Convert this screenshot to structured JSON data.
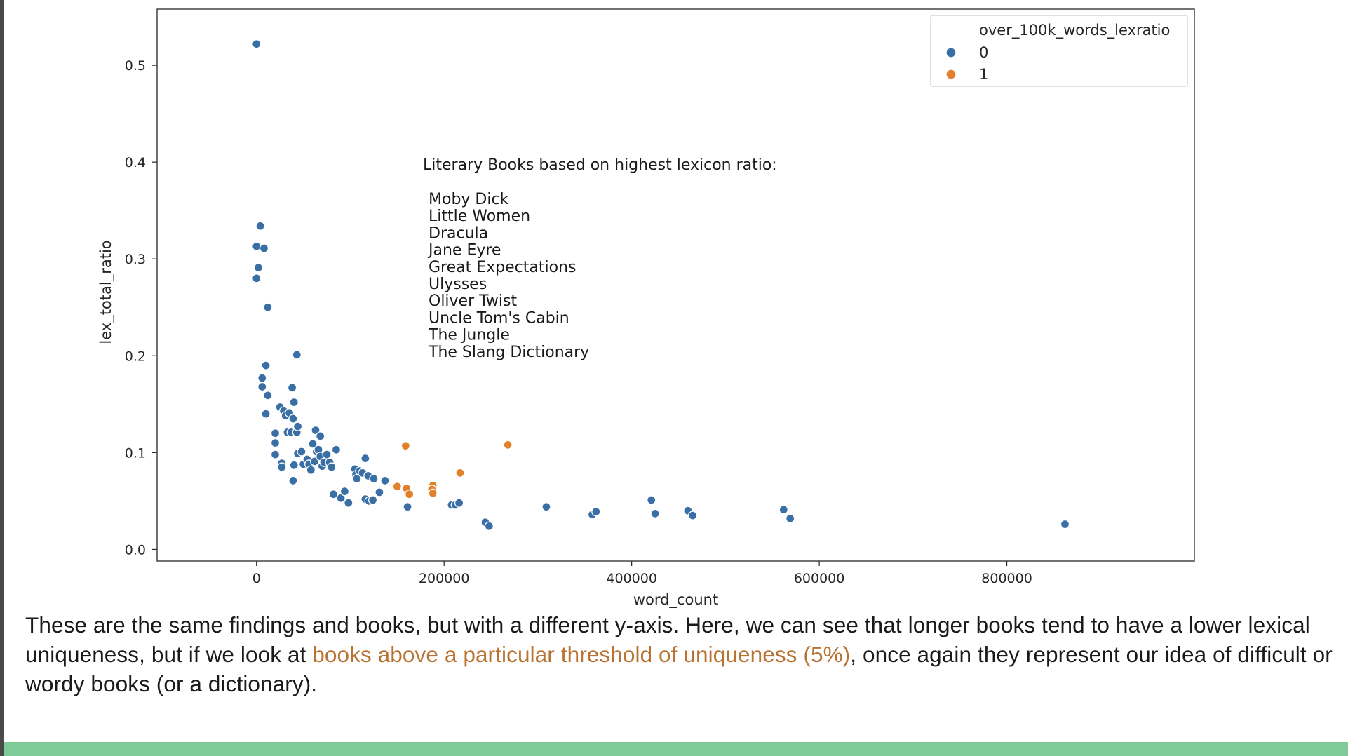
{
  "chart_data": {
    "type": "scatter",
    "xlabel": "word_count",
    "ylabel": "lex_total_ratio",
    "xlim": [
      -106000,
      1000000
    ],
    "ylim": [
      -0.012,
      0.558
    ],
    "x_ticks": [
      0,
      200000,
      400000,
      600000,
      800000
    ],
    "x_tick_labels": [
      "0",
      "200000",
      "400000",
      "600000",
      "800000"
    ],
    "y_ticks": [
      0.0,
      0.1,
      0.2,
      0.3,
      0.4,
      0.5
    ],
    "y_tick_labels": [
      "0.0",
      "0.1",
      "0.2",
      "0.3",
      "0.4",
      "0.5"
    ],
    "legend": {
      "title": "over_100k_words_lexratio",
      "placement": "top-right",
      "entries": [
        {
          "label": "0",
          "color": "#3a6fa6"
        },
        {
          "label": "1",
          "color": "#e1812c"
        }
      ]
    },
    "annotation": {
      "heading": "Literary Books based on highest lexicon ratio:",
      "books": [
        "Moby Dick",
        "Little Women",
        "Dracula",
        "Jane Eyre",
        "Great Expectations",
        "Ulysses",
        "Oliver Twist",
        "Uncle Tom's Cabin",
        "The Jungle",
        "The Slang Dictionary"
      ]
    },
    "series": [
      {
        "label": "0",
        "color": "#3a6fa6",
        "points": [
          [
            0,
            0.522
          ],
          [
            4000,
            0.334
          ],
          [
            0,
            0.313
          ],
          [
            8000,
            0.311
          ],
          [
            2000,
            0.291
          ],
          [
            0,
            0.28
          ],
          [
            12000,
            0.25
          ],
          [
            43000,
            0.201
          ],
          [
            10000,
            0.19
          ],
          [
            6000,
            0.177
          ],
          [
            6000,
            0.168
          ],
          [
            12000,
            0.159
          ],
          [
            10000,
            0.14
          ],
          [
            38000,
            0.167
          ],
          [
            40000,
            0.152
          ],
          [
            25000,
            0.147
          ],
          [
            29000,
            0.143
          ],
          [
            31000,
            0.138
          ],
          [
            35000,
            0.141
          ],
          [
            39000,
            0.135
          ],
          [
            33000,
            0.121
          ],
          [
            37000,
            0.121
          ],
          [
            43000,
            0.121
          ],
          [
            44000,
            0.127
          ],
          [
            63000,
            0.123
          ],
          [
            68000,
            0.117
          ],
          [
            20000,
            0.12
          ],
          [
            20000,
            0.11
          ],
          [
            20000,
            0.098
          ],
          [
            27000,
            0.089
          ],
          [
            27000,
            0.085
          ],
          [
            40000,
            0.087
          ],
          [
            44000,
            0.099
          ],
          [
            48000,
            0.101
          ],
          [
            50000,
            0.088
          ],
          [
            54000,
            0.093
          ],
          [
            56000,
            0.088
          ],
          [
            58000,
            0.082
          ],
          [
            60000,
            0.109
          ],
          [
            62000,
            0.091
          ],
          [
            64000,
            0.101
          ],
          [
            66000,
            0.103
          ],
          [
            68000,
            0.096
          ],
          [
            70000,
            0.086
          ],
          [
            72000,
            0.09
          ],
          [
            75000,
            0.098
          ],
          [
            78000,
            0.09
          ],
          [
            80000,
            0.085
          ],
          [
            85000,
            0.103
          ],
          [
            39000,
            0.071
          ],
          [
            82000,
            0.057
          ],
          [
            90000,
            0.053
          ],
          [
            94000,
            0.06
          ],
          [
            98000,
            0.048
          ],
          [
            105000,
            0.083
          ],
          [
            106000,
            0.077
          ],
          [
            107000,
            0.073
          ],
          [
            110000,
            0.081
          ],
          [
            113000,
            0.079
          ],
          [
            116000,
            0.094
          ],
          [
            119000,
            0.076
          ],
          [
            116000,
            0.052
          ],
          [
            120000,
            0.05
          ],
          [
            124000,
            0.051
          ],
          [
            125000,
            0.073
          ],
          [
            131000,
            0.059
          ],
          [
            137000,
            0.071
          ],
          [
            161000,
            0.044
          ],
          [
            208000,
            0.046
          ],
          [
            212000,
            0.046
          ],
          [
            216000,
            0.048
          ],
          [
            244000,
            0.028
          ],
          [
            248000,
            0.024
          ],
          [
            309000,
            0.044
          ],
          [
            358000,
            0.036
          ],
          [
            362000,
            0.039
          ],
          [
            421000,
            0.051
          ],
          [
            425000,
            0.037
          ],
          [
            460000,
            0.04
          ],
          [
            465000,
            0.035
          ],
          [
            562000,
            0.041
          ],
          [
            569000,
            0.032
          ],
          [
            862000,
            0.026
          ]
        ]
      },
      {
        "label": "1",
        "color": "#e1812c",
        "points": [
          [
            159000,
            0.107
          ],
          [
            268000,
            0.108
          ],
          [
            217000,
            0.079
          ],
          [
            150000,
            0.065
          ],
          [
            160000,
            0.063
          ],
          [
            163000,
            0.057
          ],
          [
            188000,
            0.066
          ],
          [
            187000,
            0.062
          ],
          [
            188000,
            0.058
          ]
        ]
      }
    ]
  },
  "caption": {
    "before": "These are the same findings and books, but with a different y-axis. Here, we can see that longer books tend to have a lower lexical uniqueness, but if we look at ",
    "link": "books above a particular threshold of uniqueness (5%)",
    "after": ", once again they represent our idea of difficult or wordy books (or a dictionary)."
  },
  "colors": {
    "highlight": "#b87333",
    "bottom_bar": "#7ecb98"
  }
}
